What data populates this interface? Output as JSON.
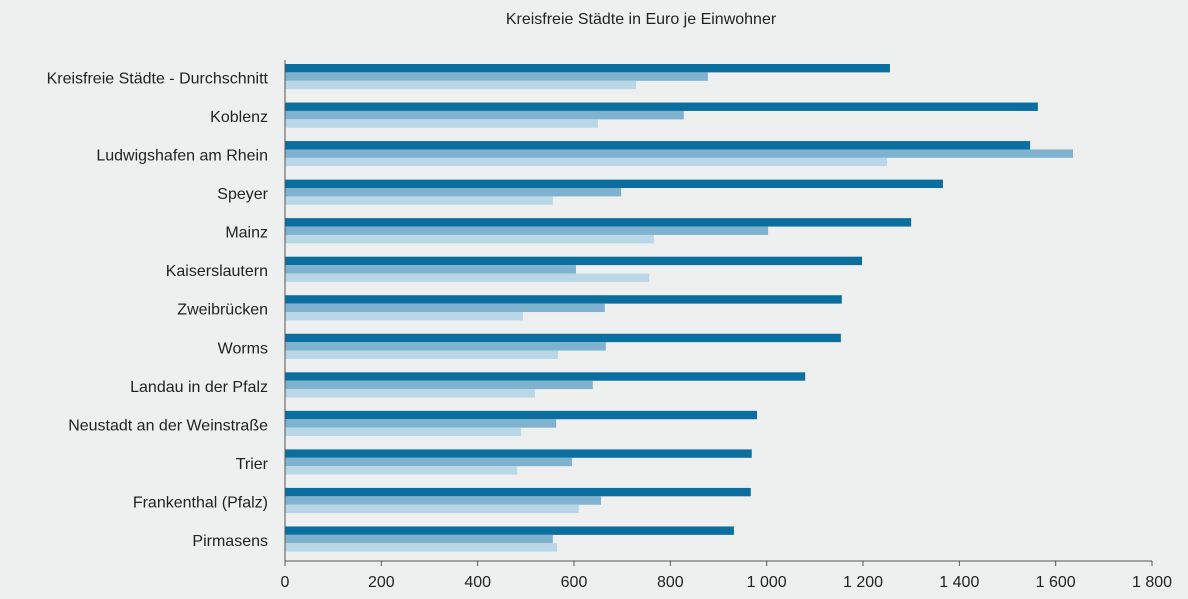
{
  "chart_data": {
    "type": "bar",
    "orientation": "horizontal",
    "title": "Kreisfreie Städte in Euro je Einwohner",
    "categories": [
      "Kreisfreie Städte - Durchschnitt",
      "Koblenz",
      "Ludwigshafen am Rhein",
      "Speyer",
      "Mainz",
      "Kaiserslautern",
      "Zweibrücken",
      "Worms",
      "Landau in der Pfalz",
      "Neustadt an der Weinstraße",
      "Trier",
      "Frankenthal (Pfalz)",
      "Pirmasens"
    ],
    "series": [
      {
        "color": "#0a6e9e",
        "values": [
          1256,
          1563,
          1547,
          1366,
          1300,
          1198,
          1156,
          1154,
          1080,
          980,
          969,
          967,
          932
        ]
      },
      {
        "color": "#7fb2cf",
        "values": [
          878,
          828,
          1636,
          698,
          1003,
          604,
          664,
          666,
          639,
          563,
          596,
          656,
          556
        ]
      },
      {
        "color": "#b9d7e7",
        "values": [
          729,
          650,
          1250,
          556,
          766,
          756,
          494,
          567,
          519,
          490,
          482,
          610,
          565
        ]
      }
    ],
    "xlim": [
      0,
      1800
    ],
    "xticks": [
      0,
      200,
      400,
      600,
      800,
      {
        "value": 1000,
        "label": "1 000"
      },
      {
        "value": 1200,
        "label": "1 200"
      },
      {
        "value": 1400,
        "label": "1 400"
      },
      {
        "value": 1600,
        "label": "1 600"
      },
      {
        "value": 1800,
        "label": "1 800"
      }
    ],
    "grid": false
  }
}
